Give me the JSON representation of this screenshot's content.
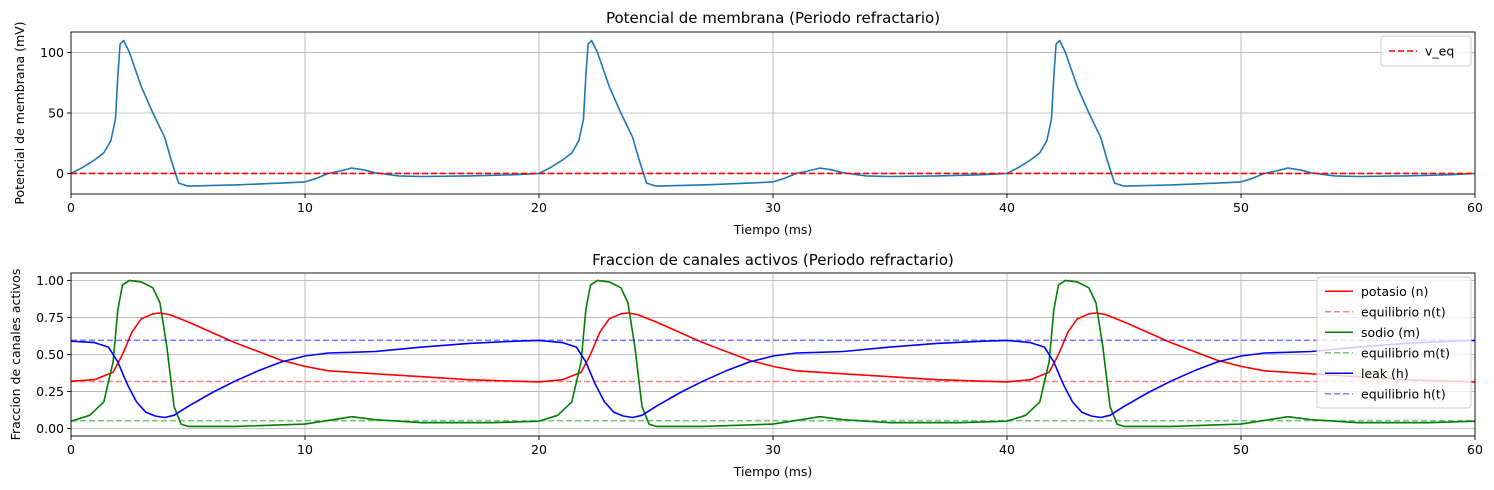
{
  "chart_data": [
    {
      "type": "line",
      "title": "Potencial de membrana (Periodo refractario)",
      "xlabel": "Tiempo (ms)",
      "ylabel": "Potencial de membrana (mV)",
      "xlim": [
        0,
        60
      ],
      "ylim": [
        -17,
        117
      ],
      "xticks": [
        0,
        10,
        20,
        30,
        40,
        50,
        60
      ],
      "yticks": [
        0,
        50,
        100
      ],
      "grid": true,
      "legend_position": "top-right",
      "series": [
        {
          "color": "#1f77b4",
          "dash": "solid",
          "x": [
            0,
            0.5,
            1.0,
            1.4,
            1.7,
            1.9,
            2.0,
            2.1,
            2.25,
            2.5,
            3.0,
            3.5,
            4.0,
            4.3,
            4.6,
            5.0,
            7.0,
            9.0,
            10.0,
            10.5,
            11.0,
            11.5,
            12.0,
            12.5,
            13.0,
            14.0,
            15.0,
            17.0,
            19.0,
            20.0,
            20.5,
            21.0,
            21.4,
            21.7,
            21.9,
            22.0,
            22.1,
            22.25,
            22.5,
            23.0,
            23.5,
            24.0,
            24.3,
            24.6,
            25.0,
            27.0,
            29.0,
            30.0,
            30.5,
            31.0,
            31.5,
            32.0,
            32.5,
            33.0,
            34.0,
            35.0,
            37.0,
            39.0,
            40.0,
            40.5,
            41.0,
            41.4,
            41.7,
            41.9,
            42.0,
            42.1,
            42.25,
            42.5,
            43.0,
            43.5,
            44.0,
            44.3,
            44.6,
            45.0,
            47.0,
            49.0,
            50.0,
            50.5,
            51.0,
            51.5,
            52.0,
            52.5,
            53.0,
            54.0,
            55.0,
            57.0,
            59.0,
            60.0
          ],
          "y": [
            0,
            5,
            11,
            17,
            27,
            45,
            80,
            107,
            110,
            100,
            72,
            50,
            30,
            10,
            -8,
            -10.5,
            -9.5,
            -8,
            -7,
            -4,
            0,
            2,
            4.5,
            3,
            0.5,
            -2,
            -2.5,
            -2,
            -1,
            0,
            5,
            11,
            17,
            27,
            45,
            80,
            107,
            110,
            100,
            72,
            50,
            30,
            10,
            -8,
            -10.5,
            -9.5,
            -8,
            -7,
            -4,
            0,
            2,
            4.5,
            3,
            0.5,
            -2,
            -2.5,
            -2,
            -1,
            0,
            5,
            11,
            17,
            27,
            45,
            80,
            107,
            110,
            100,
            72,
            50,
            30,
            10,
            -8,
            -10.5,
            -9.5,
            -8,
            -7,
            -4,
            0,
            2,
            4.5,
            3,
            0.5,
            -2,
            -2.5,
            -2,
            -1,
            0
          ]
        },
        {
          "name": "v_eq",
          "color": "#ff0000",
          "dash": "dashed",
          "x": [
            0,
            60
          ],
          "y": [
            0,
            0
          ]
        }
      ]
    },
    {
      "type": "line",
      "title": "Fraccion de canales activos (Periodo refractario)",
      "xlabel": "Tiempo (ms)",
      "ylabel": "Fraccion de canales activos",
      "xlim": [
        0,
        60
      ],
      "ylim": [
        -0.05,
        1.05
      ],
      "xticks": [
        0,
        10,
        20,
        30,
        40,
        50,
        60
      ],
      "yticks": [
        0.0,
        0.25,
        0.5,
        0.75,
        1.0
      ],
      "ytick_labels": [
        "0.00",
        "0.25",
        "0.50",
        "0.75",
        "1.00"
      ],
      "grid": true,
      "legend_position": "top-right",
      "series": [
        {
          "name": "potasio (n)",
          "color": "#ff0000",
          "dash": "solid",
          "alpha": 1,
          "x": [
            0,
            1,
            1.8,
            2.2,
            2.6,
            3.0,
            3.5,
            3.8,
            4.2,
            5.0,
            7.0,
            9.0,
            10.0,
            11.0,
            12.0,
            13.0,
            15.0,
            17.0,
            19.0,
            20.0,
            21,
            21.8,
            22.2,
            22.6,
            23.0,
            23.5,
            23.8,
            24.2,
            25.0,
            27.0,
            29.0,
            30.0,
            31.0,
            32.0,
            33.0,
            35.0,
            37.0,
            39.0,
            40.0,
            41,
            41.8,
            42.2,
            42.6,
            43.0,
            43.5,
            43.8,
            44.2,
            45.0,
            47.0,
            49.0,
            50.0,
            51.0,
            52.0,
            53.0,
            55.0,
            57.0,
            59.0,
            60.0
          ],
          "y": [
            0.32,
            0.33,
            0.38,
            0.5,
            0.65,
            0.74,
            0.775,
            0.78,
            0.77,
            0.72,
            0.58,
            0.46,
            0.42,
            0.39,
            0.38,
            0.37,
            0.35,
            0.33,
            0.32,
            0.315,
            0.33,
            0.38,
            0.5,
            0.65,
            0.74,
            0.775,
            0.78,
            0.77,
            0.72,
            0.58,
            0.46,
            0.42,
            0.39,
            0.38,
            0.37,
            0.35,
            0.33,
            0.32,
            0.315,
            0.33,
            0.38,
            0.5,
            0.65,
            0.74,
            0.775,
            0.78,
            0.77,
            0.72,
            0.58,
            0.46,
            0.42,
            0.39,
            0.38,
            0.37,
            0.35,
            0.33,
            0.32,
            0.315
          ]
        },
        {
          "name": "equilibrio n(t)",
          "color": "#ff0000",
          "dash": "dashed",
          "alpha": 0.5,
          "x": [
            0,
            60
          ],
          "y": [
            0.318,
            0.318
          ]
        },
        {
          "name": "sodio (m)",
          "color": "#008000",
          "dash": "solid",
          "alpha": 1,
          "x": [
            0,
            0.8,
            1.4,
            1.8,
            2.0,
            2.2,
            2.5,
            3.0,
            3.5,
            3.8,
            4.1,
            4.4,
            4.7,
            5.0,
            7.0,
            10.0,
            11.0,
            12.0,
            13.0,
            15.0,
            18.0,
            20.0,
            20.8,
            21.4,
            21.8,
            22.0,
            22.2,
            22.5,
            23.0,
            23.5,
            23.8,
            24.1,
            24.4,
            24.7,
            25.0,
            27.0,
            30.0,
            31.0,
            32.0,
            33.0,
            35.0,
            38.0,
            40.0,
            40.8,
            41.4,
            41.8,
            42.0,
            42.2,
            42.5,
            43.0,
            43.5,
            43.8,
            44.1,
            44.4,
            44.7,
            45.0,
            47.0,
            50.0,
            51.0,
            52.0,
            53.0,
            55.0,
            58.0,
            60.0
          ],
          "y": [
            0.05,
            0.09,
            0.18,
            0.45,
            0.8,
            0.97,
            1.0,
            0.99,
            0.95,
            0.85,
            0.55,
            0.15,
            0.03,
            0.015,
            0.015,
            0.03,
            0.055,
            0.08,
            0.06,
            0.04,
            0.04,
            0.05,
            0.09,
            0.18,
            0.45,
            0.8,
            0.97,
            1.0,
            0.99,
            0.95,
            0.85,
            0.55,
            0.15,
            0.03,
            0.015,
            0.015,
            0.03,
            0.055,
            0.08,
            0.06,
            0.04,
            0.04,
            0.05,
            0.09,
            0.18,
            0.45,
            0.8,
            0.97,
            1.0,
            0.99,
            0.95,
            0.85,
            0.55,
            0.15,
            0.03,
            0.015,
            0.015,
            0.03,
            0.055,
            0.08,
            0.06,
            0.04,
            0.04,
            0.05
          ]
        },
        {
          "name": "equilibrio m(t)",
          "color": "#008000",
          "dash": "dashed",
          "alpha": 0.5,
          "x": [
            0,
            60
          ],
          "y": [
            0.053,
            0.053
          ]
        },
        {
          "name": "leak (h)",
          "color": "#0000ff",
          "dash": "solid",
          "alpha": 1,
          "x": [
            0,
            1.0,
            1.6,
            2.0,
            2.4,
            2.8,
            3.2,
            3.6,
            4.0,
            4.4,
            5.0,
            6.0,
            7.0,
            8.0,
            9.0,
            10.0,
            11.0,
            12.0,
            13.0,
            15.0,
            17.0,
            19.0,
            20.0,
            21.0,
            21.6,
            22.0,
            22.4,
            22.8,
            23.2,
            23.6,
            24.0,
            24.4,
            25.0,
            26.0,
            27.0,
            28.0,
            29.0,
            30.0,
            31.0,
            32.0,
            33.0,
            35.0,
            37.0,
            39.0,
            40.0,
            41.0,
            41.6,
            42.0,
            42.4,
            42.8,
            43.2,
            43.6,
            44.0,
            44.4,
            45.0,
            46.0,
            47.0,
            48.0,
            49.0,
            50.0,
            51.0,
            52.0,
            53.0,
            55.0,
            57.0,
            59.0,
            60.0
          ],
          "y": [
            0.59,
            0.58,
            0.55,
            0.45,
            0.3,
            0.18,
            0.11,
            0.085,
            0.075,
            0.09,
            0.15,
            0.24,
            0.32,
            0.39,
            0.45,
            0.49,
            0.51,
            0.515,
            0.52,
            0.55,
            0.575,
            0.59,
            0.595,
            0.58,
            0.55,
            0.45,
            0.3,
            0.18,
            0.11,
            0.085,
            0.075,
            0.09,
            0.15,
            0.24,
            0.32,
            0.39,
            0.45,
            0.49,
            0.51,
            0.515,
            0.52,
            0.55,
            0.575,
            0.59,
            0.595,
            0.58,
            0.55,
            0.45,
            0.3,
            0.18,
            0.11,
            0.085,
            0.075,
            0.09,
            0.15,
            0.24,
            0.32,
            0.39,
            0.45,
            0.49,
            0.51,
            0.515,
            0.52,
            0.55,
            0.575,
            0.59,
            0.595
          ]
        },
        {
          "name": "equilibrio h(t)",
          "color": "#0000ff",
          "dash": "dashed",
          "alpha": 0.5,
          "x": [
            0,
            60
          ],
          "y": [
            0.596,
            0.596
          ]
        }
      ]
    }
  ]
}
